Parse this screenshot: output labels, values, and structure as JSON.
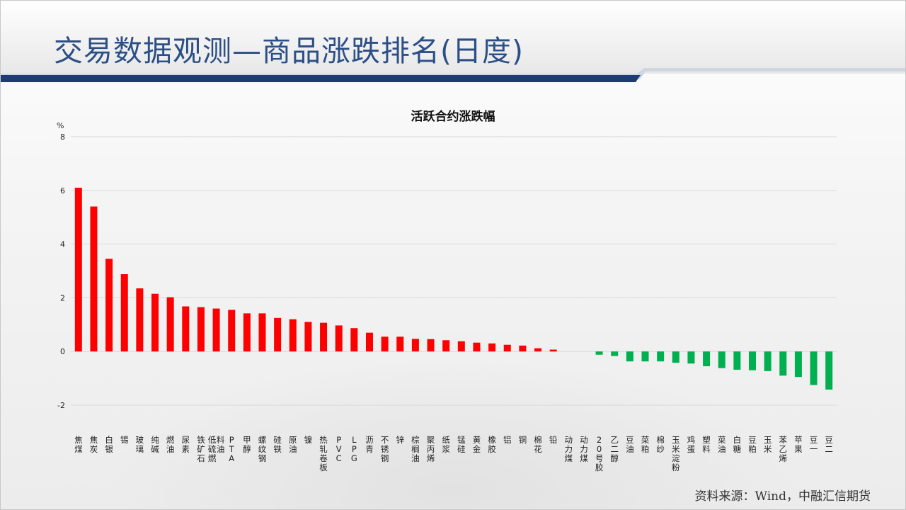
{
  "page": {
    "title": "交易数据观测—商品涨跌排名(日度)",
    "source": "资料来源：Wind，中融汇信期货"
  },
  "colors": {
    "title": "#2c4f86",
    "header_bar": "#1f3b73",
    "up": "#ff0000",
    "down": "#00b050",
    "grid": "#d9d9d9"
  },
  "chart_data": {
    "type": "bar",
    "title": "活跃合约涨跌幅",
    "ylabel": "%",
    "ylim": [
      -2,
      8
    ],
    "yticks": [
      -2,
      0,
      2,
      4,
      6,
      8
    ],
    "grid": true,
    "legend": "none",
    "categories": [
      "焦煤",
      "焦炭",
      "白银",
      "锡",
      "玻璃",
      "纯碱",
      "燃油",
      "尿素",
      "铁矿石",
      "低硫燃料油",
      "PTA",
      "甲醇",
      "螺纹钢",
      "硅铁",
      "原油",
      "镍",
      "热轧卷板",
      "PVC",
      "LPG",
      "沥青",
      "不锈钢",
      "锌",
      "棕榈油",
      "聚丙烯",
      "纸浆",
      "锰硅",
      "黄金",
      "橡胶",
      "铝",
      "铜",
      "棉花",
      "铅",
      "动力煤",
      "动力煤",
      "20号胶",
      "乙二醇",
      "豆油",
      "菜粕",
      "棉纱",
      "玉米淀粉",
      "鸡蛋",
      "塑料",
      "菜油",
      "白糖",
      "豆粕",
      "玉米",
      "苯乙烯",
      "苹果",
      "豆一",
      "豆二"
    ],
    "values": [
      6.1,
      5.4,
      3.45,
      2.88,
      2.35,
      2.15,
      2.02,
      1.68,
      1.65,
      1.6,
      1.55,
      1.42,
      1.42,
      1.25,
      1.2,
      1.1,
      1.07,
      0.97,
      0.87,
      0.7,
      0.55,
      0.55,
      0.47,
      0.46,
      0.42,
      0.38,
      0.33,
      0.3,
      0.25,
      0.22,
      0.12,
      0.07,
      0.0,
      0.0,
      -0.12,
      -0.17,
      -0.37,
      -0.37,
      -0.37,
      -0.42,
      -0.45,
      -0.55,
      -0.62,
      -0.68,
      -0.7,
      -0.73,
      -0.9,
      -0.95,
      -1.25,
      -1.42
    ]
  }
}
